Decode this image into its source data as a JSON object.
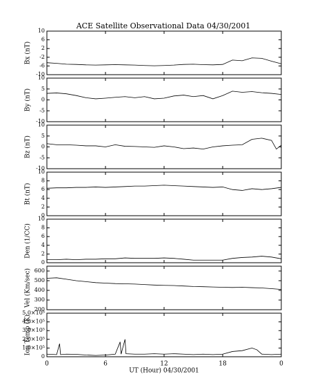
{
  "chart_data": [
    {
      "type": "line",
      "title": "ACE Satellite Observational Data   04/30/2001",
      "ylabel": "Bx (nT)",
      "color": "#000000",
      "x": [
        0,
        1,
        2,
        3,
        4,
        5,
        6,
        7,
        8,
        9,
        10,
        11,
        12,
        13,
        14,
        15,
        16,
        17,
        18,
        19,
        20,
        21,
        22,
        23,
        24
      ],
      "values": [
        -4.5,
        -4.8,
        -5.2,
        -5.3,
        -5.5,
        -5.6,
        -5.5,
        -5.4,
        -5.5,
        -5.6,
        -5.8,
        -5.9,
        -5.8,
        -5.6,
        -5.3,
        -5.2,
        -5.4,
        -5.5,
        -5.3,
        -3.3,
        -3.6,
        -2.3,
        -2.5,
        -3.8,
        -5.0
      ],
      "ylim": [
        -10,
        10
      ],
      "yticks": [
        -10,
        -6,
        -2,
        2,
        6,
        10
      ]
    },
    {
      "type": "line",
      "ylabel": "By (nT)",
      "color": "#000000",
      "x": [
        0,
        1,
        2,
        3,
        4,
        5,
        6,
        7,
        8,
        9,
        10,
        11,
        12,
        13,
        14,
        15,
        16,
        17,
        18,
        19,
        20,
        21,
        22,
        23,
        24
      ],
      "values": [
        3.0,
        3.2,
        2.8,
        2.0,
        1.0,
        0.5,
        0.8,
        1.2,
        1.5,
        1.0,
        1.5,
        0.5,
        0.8,
        1.8,
        2.2,
        1.5,
        2.0,
        0.5,
        2.0,
        4.0,
        3.5,
        3.8,
        3.3,
        3.0,
        2.5
      ],
      "ylim": [
        -10,
        10
      ],
      "yticks": [
        -10,
        -5,
        0,
        5,
        10
      ]
    },
    {
      "type": "line",
      "ylabel": "Bz (nT)",
      "color": "#000000",
      "x": [
        0,
        1,
        2,
        3,
        4,
        5,
        6,
        7,
        8,
        9,
        10,
        11,
        12,
        13,
        14,
        15,
        16,
        17,
        18,
        19,
        20,
        21,
        22,
        23,
        23.5,
        24
      ],
      "values": [
        1.5,
        1.0,
        1.0,
        0.8,
        0.5,
        0.5,
        0.0,
        1.0,
        0.3,
        0.2,
        0.0,
        -0.2,
        0.5,
        0.0,
        -0.8,
        -0.5,
        -1.0,
        0.0,
        0.5,
        0.8,
        1.0,
        3.5,
        4.0,
        3.0,
        -1.0,
        0.8
      ],
      "ylim": [
        -10,
        10
      ],
      "yticks": [
        -10,
        -5,
        0,
        5,
        10
      ]
    },
    {
      "type": "line",
      "ylabel": "Bt (nT)",
      "color": "#000000",
      "x": [
        0,
        1,
        2,
        3,
        4,
        5,
        6,
        7,
        8,
        9,
        10,
        11,
        12,
        13,
        14,
        15,
        16,
        17,
        18,
        19,
        20,
        21,
        22,
        23,
        24
      ],
      "values": [
        6.3,
        6.4,
        6.4,
        6.5,
        6.5,
        6.6,
        6.5,
        6.6,
        6.7,
        6.8,
        6.8,
        6.9,
        7.0,
        6.9,
        6.8,
        6.7,
        6.6,
        6.5,
        6.6,
        6.0,
        5.8,
        6.2,
        6.0,
        6.2,
        6.5
      ],
      "ylim": [
        0,
        10
      ],
      "yticks": [
        0,
        2,
        4,
        6,
        8,
        10
      ]
    },
    {
      "type": "line",
      "ylabel": "Den (1/CC)",
      "color": "#000000",
      "x": [
        0,
        1,
        2,
        3,
        4,
        5,
        6,
        7,
        8,
        9,
        10,
        11,
        12,
        13,
        14,
        15,
        16,
        17,
        18,
        19,
        20,
        21,
        22,
        23,
        24
      ],
      "values": [
        0.7,
        0.7,
        0.8,
        0.7,
        0.8,
        0.8,
        0.9,
        0.9,
        1.1,
        1.0,
        1.0,
        1.0,
        1.1,
        1.0,
        0.8,
        0.6,
        0.6,
        0.6,
        0.6,
        1.0,
        1.2,
        1.3,
        1.5,
        1.3,
        0.9
      ],
      "ylim": [
        0,
        10
      ],
      "yticks": [
        0,
        2,
        4,
        6,
        8,
        10
      ]
    },
    {
      "type": "line",
      "ylabel": "Vel (Km/sec)",
      "color": "#000000",
      "x": [
        0,
        1,
        2,
        3,
        4,
        5,
        6,
        7,
        8,
        9,
        10,
        11,
        12,
        13,
        14,
        15,
        16,
        17,
        18,
        19,
        20,
        21,
        22,
        23,
        24
      ],
      "values": [
        525,
        530,
        515,
        500,
        490,
        480,
        475,
        470,
        468,
        465,
        460,
        455,
        452,
        450,
        445,
        440,
        438,
        435,
        432,
        430,
        432,
        428,
        425,
        418,
        410
      ],
      "ylim": [
        200,
        650
      ],
      "yticks": [
        200,
        300,
        400,
        500,
        600
      ]
    },
    {
      "type": "line",
      "ylabel": "Ion Temp (K)",
      "xlabel": "UT (Hour)  04/30/2001",
      "color": "#000000",
      "x": [
        0,
        1,
        1.3,
        1.4,
        2,
        3,
        4,
        5,
        6,
        7,
        7.5,
        7.6,
        8,
        8.1,
        9,
        10,
        11,
        12,
        13,
        14,
        15,
        16,
        17,
        18,
        19,
        20,
        21,
        21.5,
        22,
        23,
        24
      ],
      "values": [
        30000,
        25000,
        150000,
        25000,
        30000,
        28000,
        20000,
        15000,
        20000,
        30000,
        170000,
        30000,
        200000,
        35000,
        30000,
        30000,
        35000,
        30000,
        35000,
        30000,
        25000,
        30000,
        25000,
        30000,
        60000,
        70000,
        100000,
        80000,
        30000,
        25000,
        30000
      ],
      "ylim": [
        0,
        500000
      ],
      "yticks": [
        {
          "value": 0,
          "label": "0"
        },
        {
          "value": 100000,
          "label": "1.0×10⁵"
        },
        {
          "value": 200000,
          "label": "2.0×10⁵"
        },
        {
          "value": 300000,
          "label": "3.0×10⁵"
        },
        {
          "value": 400000,
          "label": "4.0×10⁵"
        },
        {
          "value": 500000,
          "label": "5.0×10⁵"
        }
      ],
      "xlim": [
        0,
        24
      ],
      "xticks": [
        0,
        6,
        12,
        18,
        {
          "value": 24,
          "label": "0"
        }
      ]
    }
  ]
}
